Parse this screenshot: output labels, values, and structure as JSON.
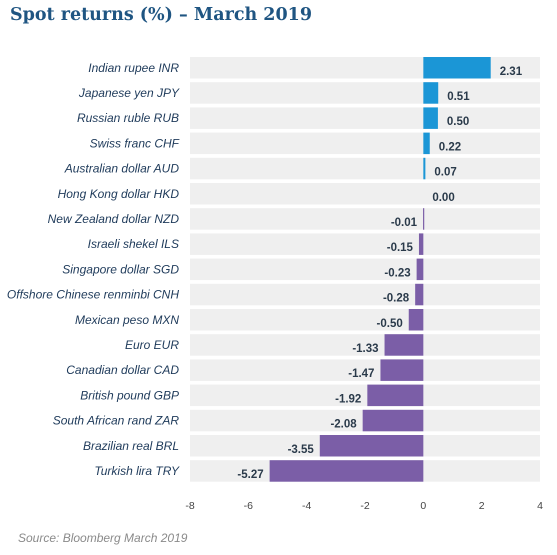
{
  "chart_data": {
    "type": "bar",
    "orientation": "horizontal",
    "title": "Spot returns (%) – March 2019",
    "source": "Source: Bloomberg March 2019",
    "categories": [
      "Indian rupee INR",
      "Japanese yen JPY",
      "Russian ruble RUB",
      "Swiss franc CHF",
      "Australian dollar AUD",
      "Hong Kong dollar HKD",
      "New Zealand dollar NZD",
      "Israeli shekel ILS",
      "Singapore dollar SGD",
      "Offshore Chinese renminbi CNH",
      "Mexican peso MXN",
      "Euro EUR",
      "Canadian dollar CAD",
      "British pound GBP",
      "South African rand ZAR",
      "Brazilian real BRL",
      "Turkish lira TRY"
    ],
    "values": [
      2.31,
      0.51,
      0.5,
      0.22,
      0.07,
      0.0,
      -0.01,
      -0.15,
      -0.23,
      -0.28,
      -0.5,
      -1.33,
      -1.47,
      -1.92,
      -2.08,
      -3.55,
      -5.27
    ],
    "value_labels": [
      "2.31",
      "0.51",
      "0.50",
      "0.22",
      "0.07",
      "0.00",
      "-0.01",
      "-0.15",
      "-0.23",
      "-0.28",
      "-0.50",
      "-1.33",
      "-1.47",
      "-1.92",
      "-2.08",
      "-3.55",
      "-5.27"
    ],
    "xlim": [
      -8,
      4
    ],
    "xticks": [
      "-8",
      "-6",
      "-4",
      "-2",
      "0",
      "2",
      "4"
    ],
    "grid": false,
    "colors": {
      "positive": "#1b96d6",
      "negative": "#7b5ea7",
      "row_band": "#efefef",
      "title": "#1f5582",
      "source": "#8a8a8a"
    }
  }
}
